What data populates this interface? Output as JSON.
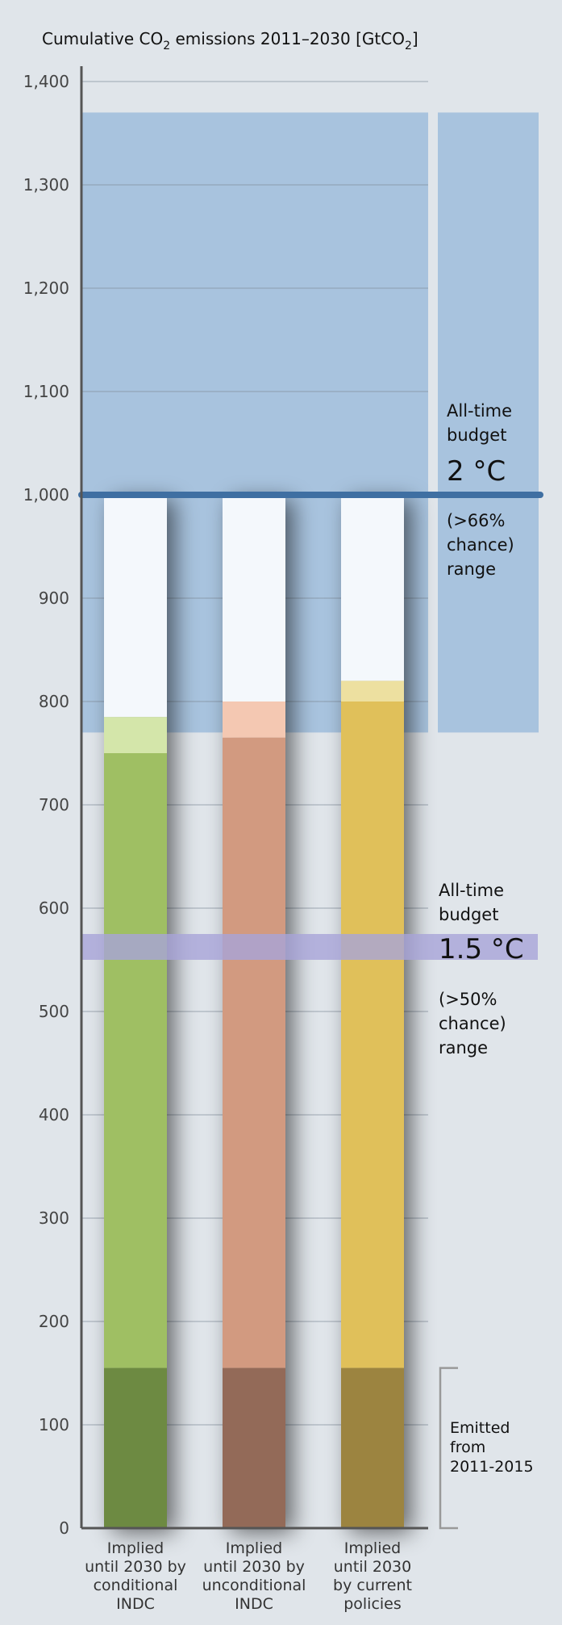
{
  "chart_data": {
    "type": "bar",
    "title": "Cumulative CO",
    "title_sub1": "2",
    "title_mid": " emissions 2011–2030 [GtCO",
    "title_sub2": "2",
    "title_end": "]",
    "ylim": [
      0,
      1400
    ],
    "yticks": [
      0,
      100,
      200,
      300,
      400,
      500,
      600,
      700,
      800,
      900,
      1000,
      1100,
      1200,
      1300,
      1400
    ],
    "ytick_labels": [
      "0",
      "100",
      "200",
      "300",
      "400",
      "500",
      "600",
      "700",
      "800",
      "900",
      "1,000",
      "1,100",
      "1,200",
      "1,300",
      "1,400"
    ],
    "grid": true,
    "categories": [
      [
        "Implied",
        "until 2030 by",
        "conditional",
        "INDC"
      ],
      [
        "Implied",
        "until 2030 by",
        "unconditional",
        "INDC"
      ],
      [
        "Implied",
        "until 2030",
        "by current",
        "policies"
      ]
    ],
    "bars": [
      {
        "emitted": 155,
        "implied_low": 750,
        "implied_high": 785,
        "top": 1000,
        "color_dark": "#6d8a43",
        "color_main": "#9fbf63",
        "color_light": "#d4e6aa"
      },
      {
        "emitted": 155,
        "implied_low": 765,
        "implied_high": 800,
        "top": 1000,
        "color_dark": "#936a58",
        "color_main": "#d29a80",
        "color_light": "#f4c8b2"
      },
      {
        "emitted": 155,
        "implied_low": 800,
        "implied_high": 820,
        "top": 1000,
        "color_dark": "#9c8440",
        "color_main": "#e0c05a",
        "color_light": "#ede0a0"
      }
    ],
    "budget_2c": {
      "low": 770,
      "high": 1370,
      "line": 1000,
      "color": "#a8c3de",
      "line_color": "#3f6fa2",
      "label": [
        "All-time",
        "budget"
      ],
      "big": "2 °C",
      "chance": [
        "(>66%",
        "chance)",
        "range"
      ]
    },
    "budget_15c": {
      "low": 550,
      "high": 575,
      "color": "#a8a4d8",
      "label": [
        "All-time",
        "budget"
      ],
      "big": "1.5 °C",
      "chance": [
        "(>50%",
        "chance)",
        "range"
      ]
    },
    "emitted_annotation": {
      "label": [
        "Emitted",
        "from",
        "2011-2015"
      ],
      "range": [
        0,
        155
      ]
    }
  }
}
